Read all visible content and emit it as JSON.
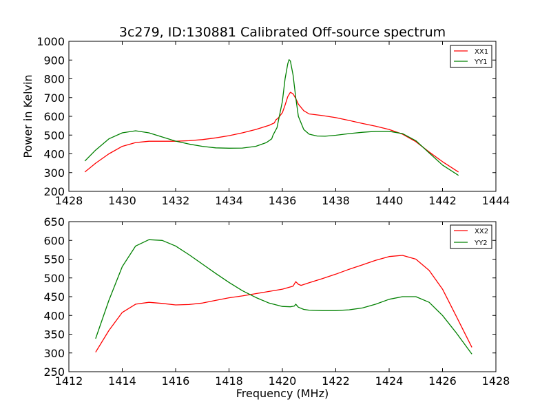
{
  "figure": {
    "title": "3c279, ID:130881 Calibrated Off-source spectrum"
  },
  "chart_data": [
    {
      "type": "line",
      "title": "3c279, ID:130881 Calibrated Off-source spectrum",
      "xlabel": "",
      "ylabel": "Power in Kelvin",
      "xlim": [
        1428,
        1444
      ],
      "ylim": [
        200,
        1000
      ],
      "xticks": [
        "1428",
        "1430",
        "1432",
        "1434",
        "1436",
        "1438",
        "1440",
        "1442",
        "1444"
      ],
      "yticks": [
        "200",
        "300",
        "400",
        "500",
        "600",
        "700",
        "800",
        "900",
        "1000"
      ],
      "legend": "top-right",
      "series": [
        {
          "name": "XX1",
          "color": "#ff0000",
          "x": [
            1428.6,
            1429.0,
            1429.5,
            1430.0,
            1430.5,
            1431.0,
            1431.5,
            1432.0,
            1432.5,
            1433.0,
            1433.5,
            1434.0,
            1434.5,
            1435.0,
            1435.5,
            1435.7,
            1435.75,
            1435.85,
            1436.0,
            1436.1,
            1436.2,
            1436.3,
            1436.4,
            1436.5,
            1436.6,
            1436.8,
            1437.0,
            1437.5,
            1438.0,
            1438.5,
            1439.0,
            1439.5,
            1440.0,
            1440.5,
            1441.0,
            1441.5,
            1442.0,
            1442.6
          ],
          "y": [
            303,
            350,
            400,
            440,
            460,
            467,
            467,
            467,
            470,
            476,
            485,
            497,
            512,
            530,
            552,
            565,
            580,
            592,
            620,
            660,
            705,
            728,
            720,
            695,
            665,
            630,
            613,
            604,
            593,
            578,
            562,
            547,
            530,
            505,
            465,
            410,
            358,
            303
          ]
        },
        {
          "name": "YY1",
          "color": "#008000",
          "x": [
            1428.6,
            1429.0,
            1429.5,
            1430.0,
            1430.5,
            1431.0,
            1431.5,
            1432.0,
            1432.5,
            1433.0,
            1433.5,
            1434.0,
            1434.5,
            1435.0,
            1435.4,
            1435.6,
            1435.65,
            1435.8,
            1436.0,
            1436.1,
            1436.2,
            1436.25,
            1436.3,
            1436.4,
            1436.5,
            1436.6,
            1436.8,
            1437.0,
            1437.3,
            1437.6,
            1438.0,
            1438.5,
            1439.0,
            1439.5,
            1440.0,
            1440.5,
            1441.0,
            1441.5,
            1442.0,
            1442.6
          ],
          "y": [
            362,
            420,
            480,
            512,
            523,
            512,
            490,
            468,
            452,
            440,
            432,
            430,
            431,
            440,
            460,
            480,
            500,
            540,
            680,
            800,
            880,
            902,
            895,
            820,
            700,
            600,
            530,
            505,
            495,
            494,
            499,
            508,
            515,
            520,
            520,
            508,
            470,
            405,
            340,
            285
          ]
        }
      ]
    },
    {
      "type": "line",
      "title": "",
      "xlabel": "Frequency (MHz)",
      "ylabel": "",
      "xlim": [
        1412,
        1428
      ],
      "ylim": [
        250,
        650
      ],
      "xticks": [
        "1412",
        "1414",
        "1416",
        "1418",
        "1420",
        "1422",
        "1424",
        "1426",
        "1428"
      ],
      "yticks": [
        "250",
        "300",
        "350",
        "400",
        "450",
        "500",
        "550",
        "600",
        "650"
      ],
      "legend": "top-right",
      "series": [
        {
          "name": "XX2",
          "color": "#ff0000",
          "x": [
            1413.0,
            1413.5,
            1414.0,
            1414.5,
            1415.0,
            1415.5,
            1416.0,
            1416.5,
            1417.0,
            1417.5,
            1418.0,
            1418.5,
            1419.0,
            1419.5,
            1420.0,
            1420.4,
            1420.5,
            1420.6,
            1420.7,
            1421.0,
            1421.5,
            1422.0,
            1422.5,
            1423.0,
            1423.5,
            1424.0,
            1424.5,
            1425.0,
            1425.5,
            1426.0,
            1426.5,
            1427.1
          ],
          "y": [
            302,
            360,
            408,
            430,
            435,
            432,
            428,
            429,
            433,
            440,
            447,
            452,
            458,
            464,
            470,
            478,
            490,
            483,
            480,
            487,
            498,
            510,
            523,
            535,
            547,
            557,
            560,
            550,
            520,
            470,
            400,
            315
          ]
        },
        {
          "name": "YY2",
          "color": "#008000",
          "x": [
            1413.0,
            1413.5,
            1414.0,
            1414.5,
            1415.0,
            1415.5,
            1416.0,
            1416.5,
            1417.0,
            1417.5,
            1418.0,
            1418.5,
            1419.0,
            1419.5,
            1420.0,
            1420.3,
            1420.45,
            1420.5,
            1420.6,
            1420.8,
            1421.0,
            1421.5,
            1422.0,
            1422.5,
            1423.0,
            1423.5,
            1424.0,
            1424.5,
            1425.0,
            1425.5,
            1426.0,
            1426.5,
            1427.1
          ],
          "y": [
            338,
            440,
            530,
            585,
            602,
            600,
            585,
            562,
            537,
            512,
            488,
            466,
            448,
            433,
            424,
            423,
            425,
            430,
            422,
            416,
            414,
            413,
            413,
            415,
            420,
            430,
            443,
            450,
            450,
            435,
            400,
            355,
            297
          ]
        }
      ]
    }
  ]
}
